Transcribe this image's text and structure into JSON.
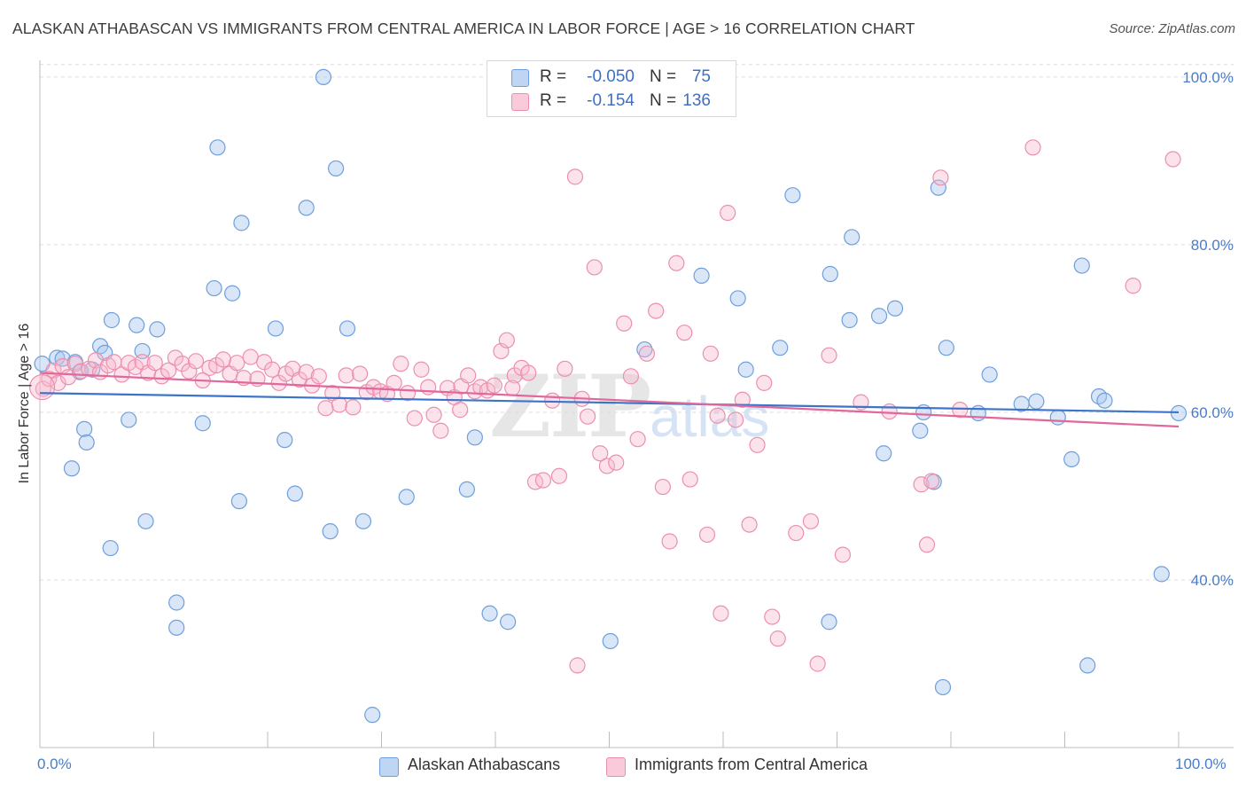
{
  "header": {
    "title": "ALASKAN ATHABASCAN VS IMMIGRANTS FROM CENTRAL AMERICA IN LABOR FORCE | AGE > 16 CORRELATION CHART",
    "source": "Source: ZipAtlas.com"
  },
  "watermark": {
    "zip": "ZIP",
    "atlas": "atlas"
  },
  "legend": {
    "rows": [
      {
        "r_label": "R =",
        "r_value": "-0.050",
        "n_label": "N =",
        "n_value": "75",
        "color": "#a8c8f0"
      },
      {
        "r_label": "R =",
        "r_value": "-0.154",
        "n_label": "N =",
        "n_value": "136",
        "color": "#f7b8cc"
      }
    ]
  },
  "bottom_legend": {
    "items": [
      {
        "label": "Alaskan Athabascans",
        "color": "#a8c8f0"
      },
      {
        "label": "Immigrants from Central America",
        "color": "#f7b8cc"
      }
    ]
  },
  "colors": {
    "blue_fill": "rgba(168,200,240,0.45)",
    "blue_stroke": "#6f9fdc",
    "blue_line": "#3d74c9",
    "pink_fill": "rgba(247,184,204,0.40)",
    "pink_stroke": "#ec8fae",
    "pink_line": "#e0689a",
    "grid": "#dcdcdc",
    "tick_label": "#4a7cc9"
  },
  "chart_data": {
    "type": "scatter",
    "title": "ALASKAN ATHABASCAN VS IMMIGRANTS FROM CENTRAL AMERICA IN LABOR FORCE | AGE > 16 CORRELATION CHART",
    "xlabel": "",
    "ylabel": "In Labor Force | Age > 16",
    "xlim": [
      0,
      100
    ],
    "ylim": [
      20,
      102
    ],
    "x_tick_labels": [
      "0.0%",
      "100.0%"
    ],
    "y_ticks": [
      {
        "value": 40,
        "label": "40.0%"
      },
      {
        "value": 60,
        "label": "60.0%"
      },
      {
        "value": 80,
        "label": "80.0%"
      },
      {
        "value": 100,
        "label": "100.0%"
      }
    ],
    "grid": true,
    "legend_position": "top-center",
    "series": [
      {
        "name": "Alaskan Athabascans",
        "r": -0.05,
        "n": 75,
        "trend": {
          "x": [
            0,
            100
          ],
          "y": [
            62.3,
            60.0
          ]
        },
        "points": [
          [
            0.2,
            65.8
          ],
          [
            1.5,
            66.5
          ],
          [
            2.0,
            66.4
          ],
          [
            3.1,
            66.0
          ],
          [
            3.5,
            64.8
          ],
          [
            2.8,
            53.3
          ],
          [
            3.9,
            58.0
          ],
          [
            4.1,
            56.4
          ],
          [
            4.6,
            65.1
          ],
          [
            5.3,
            67.9
          ],
          [
            5.7,
            67.1
          ],
          [
            6.3,
            71.0
          ],
          [
            6.2,
            43.8
          ],
          [
            7.8,
            59.1
          ],
          [
            8.5,
            70.4
          ],
          [
            9.0,
            67.3
          ],
          [
            9.3,
            47.0
          ],
          [
            10.3,
            69.9
          ],
          [
            12.0,
            37.3
          ],
          [
            12.0,
            34.3
          ],
          [
            14.3,
            58.7
          ],
          [
            15.3,
            74.8
          ],
          [
            15.6,
            91.6
          ],
          [
            16.9,
            74.2
          ],
          [
            17.5,
            49.4
          ],
          [
            17.7,
            82.6
          ],
          [
            20.7,
            70.0
          ],
          [
            21.5,
            56.7
          ],
          [
            22.4,
            50.3
          ],
          [
            23.4,
            84.4
          ],
          [
            24.9,
            100.0
          ],
          [
            25.5,
            45.8
          ],
          [
            26.0,
            89.1
          ],
          [
            27.0,
            70.0
          ],
          [
            28.4,
            47.0
          ],
          [
            29.2,
            23.9
          ],
          [
            32.2,
            49.9
          ],
          [
            37.5,
            50.8
          ],
          [
            38.2,
            57.0
          ],
          [
            39.5,
            36.0
          ],
          [
            41.1,
            35.0
          ],
          [
            50.1,
            32.7
          ],
          [
            53.1,
            67.5
          ],
          [
            58.1,
            76.3
          ],
          [
            61.3,
            73.6
          ],
          [
            62.0,
            65.1
          ],
          [
            65.0,
            67.7
          ],
          [
            66.1,
            85.9
          ],
          [
            69.3,
            35.0
          ],
          [
            69.4,
            76.5
          ],
          [
            71.1,
            71.0
          ],
          [
            71.3,
            80.9
          ],
          [
            73.7,
            71.5
          ],
          [
            74.1,
            55.1
          ],
          [
            75.1,
            72.4
          ],
          [
            77.3,
            57.8
          ],
          [
            77.6,
            60.0
          ],
          [
            78.5,
            51.7
          ],
          [
            78.9,
            86.8
          ],
          [
            79.3,
            27.2
          ],
          [
            79.6,
            67.7
          ],
          [
            82.4,
            59.9
          ],
          [
            83.4,
            64.5
          ],
          [
            86.2,
            61.0
          ],
          [
            87.5,
            61.3
          ],
          [
            89.4,
            59.4
          ],
          [
            90.6,
            54.4
          ],
          [
            91.5,
            77.5
          ],
          [
            92.0,
            29.8
          ],
          [
            93.0,
            61.9
          ],
          [
            93.5,
            61.4
          ],
          [
            98.5,
            40.7
          ],
          [
            100.0,
            59.9
          ]
        ]
      },
      {
        "name": "Immigrants from Central America",
        "r": -0.154,
        "n": 136,
        "trend": {
          "x": [
            0,
            100
          ],
          "y": [
            64.7,
            58.3
          ]
        },
        "points": [
          [
            0.3,
            62.8
          ],
          [
            0.8,
            64.0
          ],
          [
            1.2,
            65.0
          ],
          [
            1.6,
            63.5
          ],
          [
            2.0,
            65.5
          ],
          [
            2.5,
            64.2
          ],
          [
            3.1,
            65.8
          ],
          [
            3.6,
            64.9
          ],
          [
            4.3,
            65.2
          ],
          [
            4.9,
            66.2
          ],
          [
            5.3,
            64.8
          ],
          [
            6.0,
            65.6
          ],
          [
            6.5,
            66.0
          ],
          [
            7.2,
            64.5
          ],
          [
            7.8,
            65.9
          ],
          [
            8.4,
            65.4
          ],
          [
            9.0,
            66.0
          ],
          [
            9.5,
            64.7
          ],
          [
            10.1,
            65.9
          ],
          [
            10.7,
            64.3
          ],
          [
            11.3,
            65.0
          ],
          [
            11.9,
            66.5
          ],
          [
            12.5,
            65.8
          ],
          [
            13.1,
            64.9
          ],
          [
            13.7,
            66.1
          ],
          [
            14.3,
            63.8
          ],
          [
            14.9,
            65.3
          ],
          [
            15.5,
            65.6
          ],
          [
            16.1,
            66.3
          ],
          [
            16.7,
            64.6
          ],
          [
            17.3,
            65.9
          ],
          [
            17.9,
            64.1
          ],
          [
            18.5,
            66.6
          ],
          [
            19.1,
            64.0
          ],
          [
            19.7,
            66.0
          ],
          [
            20.4,
            65.1
          ],
          [
            21.0,
            63.5
          ],
          [
            21.6,
            64.6
          ],
          [
            22.2,
            65.2
          ],
          [
            22.8,
            63.9
          ],
          [
            23.4,
            64.8
          ],
          [
            23.9,
            63.2
          ],
          [
            24.5,
            64.3
          ],
          [
            25.1,
            60.5
          ],
          [
            25.7,
            62.3
          ],
          [
            26.3,
            60.9
          ],
          [
            26.9,
            64.4
          ],
          [
            27.5,
            60.6
          ],
          [
            28.1,
            64.6
          ],
          [
            28.7,
            62.4
          ],
          [
            29.3,
            63.0
          ],
          [
            29.9,
            62.5
          ],
          [
            30.5,
            62.2
          ],
          [
            31.1,
            63.5
          ],
          [
            31.7,
            65.8
          ],
          [
            32.3,
            62.3
          ],
          [
            32.9,
            59.3
          ],
          [
            33.5,
            65.1
          ],
          [
            34.1,
            63.0
          ],
          [
            34.6,
            59.7
          ],
          [
            35.2,
            57.8
          ],
          [
            35.8,
            62.9
          ],
          [
            36.4,
            61.8
          ],
          [
            37.0,
            63.1
          ],
          [
            37.6,
            64.4
          ],
          [
            38.2,
            62.5
          ],
          [
            38.7,
            63.0
          ],
          [
            39.3,
            62.6
          ],
          [
            39.9,
            63.2
          ],
          [
            40.5,
            67.3
          ],
          [
            41.0,
            68.6
          ],
          [
            41.7,
            64.4
          ],
          [
            42.3,
            65.3
          ],
          [
            42.9,
            64.7
          ],
          [
            43.5,
            51.7
          ],
          [
            44.2,
            51.9
          ],
          [
            45.0,
            61.4
          ],
          [
            45.6,
            52.4
          ],
          [
            46.1,
            65.2
          ],
          [
            47.0,
            88.1
          ],
          [
            47.6,
            61.6
          ],
          [
            48.1,
            59.5
          ],
          [
            48.7,
            77.3
          ],
          [
            49.2,
            55.1
          ],
          [
            49.8,
            53.6
          ],
          [
            50.6,
            54.0
          ],
          [
            51.3,
            70.6
          ],
          [
            51.9,
            64.3
          ],
          [
            52.5,
            56.8
          ],
          [
            53.3,
            67.0
          ],
          [
            54.1,
            72.1
          ],
          [
            54.7,
            51.1
          ],
          [
            55.3,
            44.6
          ],
          [
            55.9,
            77.8
          ],
          [
            56.6,
            69.5
          ],
          [
            57.1,
            52.0
          ],
          [
            58.6,
            45.4
          ],
          [
            58.9,
            67.0
          ],
          [
            59.5,
            59.6
          ],
          [
            59.8,
            36.0
          ],
          [
            60.4,
            83.8
          ],
          [
            61.1,
            59.1
          ],
          [
            61.7,
            61.5
          ],
          [
            62.3,
            46.6
          ],
          [
            63.0,
            56.1
          ],
          [
            63.6,
            63.5
          ],
          [
            64.3,
            35.6
          ],
          [
            64.8,
            33.0
          ],
          [
            66.4,
            45.6
          ],
          [
            67.7,
            47.0
          ],
          [
            68.3,
            30.0
          ],
          [
            69.3,
            66.8
          ],
          [
            70.5,
            43.0
          ],
          [
            72.1,
            61.2
          ],
          [
            74.6,
            60.1
          ],
          [
            77.4,
            51.4
          ],
          [
            77.9,
            44.2
          ],
          [
            78.3,
            51.8
          ],
          [
            79.1,
            88.0
          ],
          [
            80.8,
            60.3
          ],
          [
            87.2,
            91.6
          ],
          [
            96.0,
            75.1
          ],
          [
            99.5,
            90.2
          ],
          [
            47.2,
            29.8
          ],
          [
            36.9,
            60.3
          ],
          [
            41.5,
            62.9
          ]
        ]
      }
    ]
  }
}
